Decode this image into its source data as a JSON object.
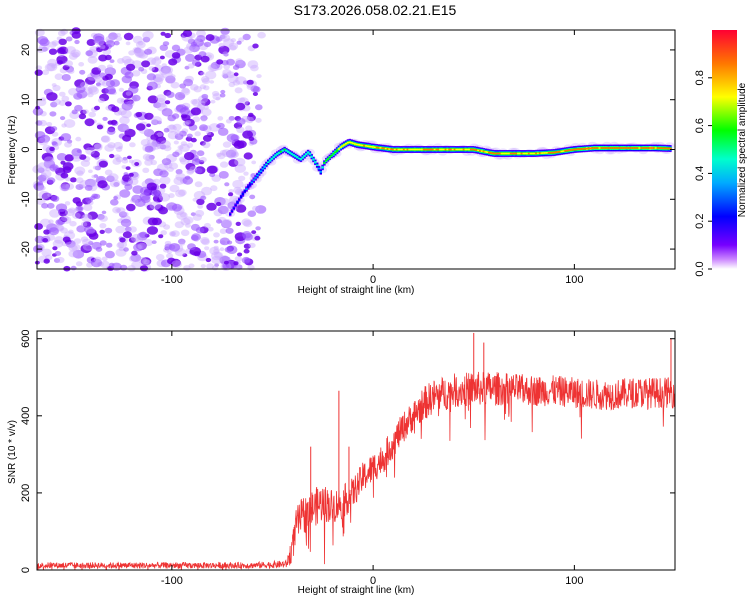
{
  "title": "S173.2026.058.02.21.E15",
  "chart_data": [
    {
      "type": "heatmap",
      "xlabel": "Height of straight line (km)",
      "ylabel": "Frequency (Hz)",
      "xlim": [
        -167,
        150
      ],
      "ylim": [
        -24,
        24
      ],
      "xticks": [
        -100,
        0,
        100
      ],
      "xtick_labels": [
        "-100",
        "0",
        "100"
      ],
      "yticks": [
        -20,
        -10,
        0,
        10,
        20
      ],
      "ytick_labels": [
        "-20",
        "-10",
        "0",
        "10",
        "20"
      ],
      "colorbar": {
        "label": "Normalized spectral amplitude",
        "range": [
          0,
          1
        ],
        "ticks": [
          0,
          0.2,
          0.4,
          0.6,
          0.8
        ],
        "tick_labels": [
          "0.0",
          "0.2",
          "0.4",
          "0.6",
          "0.8"
        ]
      },
      "noise_region_x": [
        -167,
        -54
      ],
      "ridge": {
        "x": [
          -71,
          -68,
          -64,
          -60,
          -56,
          -52,
          -48,
          -44,
          -40,
          -36,
          -32,
          -28,
          -26,
          -24,
          -20,
          -16,
          -12,
          -8,
          0,
          10,
          20,
          30,
          40,
          50,
          60,
          70,
          80,
          90,
          100,
          110,
          120,
          130,
          140,
          148
        ],
        "freq": [
          -13,
          -11,
          -8.5,
          -6.5,
          -4.5,
          -2.5,
          -1,
          0,
          -1,
          -2,
          -0.5,
          -3,
          -4.5,
          -2.5,
          -1,
          0.5,
          1.5,
          1,
          0.5,
          0,
          0,
          0,
          0,
          0,
          -0.8,
          -0.8,
          -0.8,
          -0.6,
          0,
          0.3,
          0.3,
          0.3,
          0.3,
          0.2
        ],
        "amp": [
          0.25,
          0.3,
          0.35,
          0.4,
          0.45,
          0.5,
          0.55,
          0.6,
          0.55,
          0.5,
          0.6,
          0.5,
          0.45,
          0.6,
          0.75,
          0.8,
          0.85,
          0.85,
          0.9,
          0.9,
          0.9,
          0.9,
          0.9,
          0.9,
          0.9,
          0.9,
          0.9,
          0.9,
          0.95,
          0.95,
          0.95,
          0.95,
          0.95,
          0.95
        ]
      }
    },
    {
      "type": "line",
      "xlabel": "Height of straight line (km)",
      "ylabel": "SNR (10 * v/v)",
      "xlim": [
        -167,
        150
      ],
      "ylim": [
        0,
        620
      ],
      "xticks": [
        -100,
        0,
        100
      ],
      "xtick_labels": [
        "-100",
        "0",
        "100"
      ],
      "yticks": [
        0,
        200,
        400,
        600
      ],
      "ytick_labels": [
        "0",
        "200",
        "400",
        "600"
      ],
      "color": "#ee3333",
      "envelope": {
        "x": [
          -167,
          -60,
          -43,
          -40,
          -38,
          -35,
          -30,
          -25,
          -20,
          -15,
          -10,
          -5,
          0,
          5,
          10,
          15,
          20,
          25,
          30,
          40,
          50,
          60,
          70,
          80,
          90,
          100,
          110,
          120,
          130,
          140,
          150
        ],
        "mean": [
          12,
          12,
          15,
          60,
          120,
          140,
          160,
          175,
          165,
          175,
          200,
          240,
          265,
          290,
          330,
          370,
          400,
          430,
          450,
          465,
          470,
          470,
          470,
          465,
          465,
          460,
          455,
          455,
          460,
          460,
          460
        ],
        "noise": [
          8,
          8,
          10,
          40,
          45,
          50,
          50,
          50,
          45,
          45,
          40,
          40,
          40,
          40,
          40,
          40,
          40,
          45,
          45,
          45,
          45,
          45,
          40,
          40,
          40,
          40,
          40,
          40,
          40,
          40,
          40
        ]
      },
      "peaks": [
        {
          "x": -17,
          "y": 465
        },
        {
          "x": 50,
          "y": 615
        },
        {
          "x": 55,
          "y": 590
        },
        {
          "x": 148,
          "y": 600
        },
        {
          "x": -31,
          "y": 320
        },
        {
          "x": -12,
          "y": 320
        }
      ]
    }
  ]
}
